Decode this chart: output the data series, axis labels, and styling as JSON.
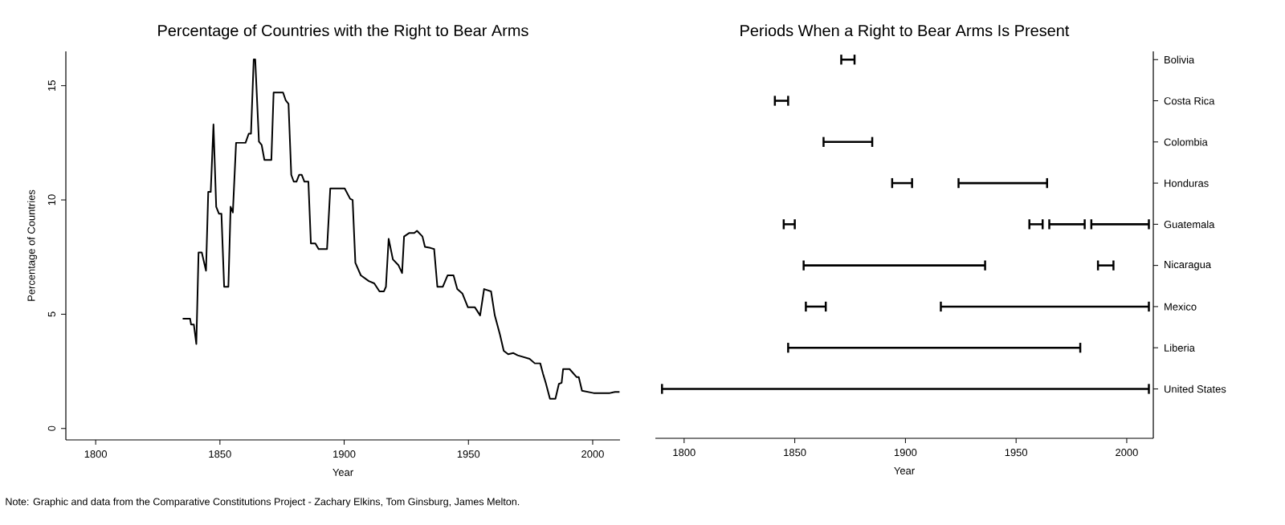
{
  "chart_data": [
    {
      "type": "line",
      "title": "Percentage of Countries with the Right to Bear Arms",
      "xlabel": "Year",
      "ylabel": "Percentage of Countries",
      "x": [
        1835,
        1838,
        1838.4,
        1839.5,
        1840.5,
        1841.4,
        1842.7,
        1844.4,
        1845.3,
        1846.3,
        1847.4,
        1848.5,
        1849.6,
        1850.6,
        1851.7,
        1853.4,
        1854.3,
        1855.2,
        1856.5,
        1860.3,
        1861.6,
        1862.5,
        1863.6,
        1864.2,
        1865.7,
        1866.8,
        1867.9,
        1870.7,
        1871.6,
        1875.4,
        1876.5,
        1877.6,
        1878.7,
        1879.7,
        1880.8,
        1881.9,
        1882.9,
        1884,
        1885.6,
        1886.6,
        1888.4,
        1889.7,
        1893.1,
        1894.4,
        1900.2,
        1902.4,
        1903.4,
        1904.5,
        1906.7,
        1909.9,
        1912.1,
        1914.2,
        1916,
        1916.8,
        1917.9,
        1919.6,
        1921.8,
        1923.3,
        1924.1,
        1926.1,
        1928.2,
        1929.3,
        1931.5,
        1932.5,
        1934.7,
        1936.2,
        1937.5,
        1939.7,
        1941.6,
        1944,
        1945.5,
        1947.6,
        1949.8,
        1952.6,
        1954.7,
        1956.3,
        1959.1,
        1960.6,
        1962.7,
        1964.2,
        1966,
        1968.1,
        1969.8,
        1974.6,
        1976.7,
        1978.9,
        1980,
        1981.1,
        1982.8,
        1985,
        1986.4,
        1987.5,
        1988.1,
        1990.7,
        1993.5,
        1994.4,
        1995.7,
        2000.4,
        2006.9,
        2009,
        2010.8
      ],
      "values": [
        4.8,
        4.8,
        4.55,
        4.55,
        3.7,
        7.7,
        7.7,
        6.9,
        10.35,
        10.35,
        13.3,
        9.7,
        9.4,
        9.4,
        6.2,
        6.2,
        9.7,
        9.45,
        12.5,
        12.5,
        12.9,
        12.9,
        16.15,
        16.15,
        12.55,
        12.4,
        11.75,
        11.75,
        14.7,
        14.7,
        14.35,
        14.2,
        11.1,
        10.8,
        10.8,
        11.1,
        11.1,
        10.8,
        10.8,
        8.1,
        8.1,
        7.85,
        7.85,
        10.5,
        10.5,
        10.05,
        10.0,
        7.25,
        6.7,
        6.45,
        6.35,
        6.0,
        6.0,
        6.2,
        8.3,
        7.4,
        7.15,
        6.8,
        8.4,
        8.55,
        8.55,
        8.65,
        8.4,
        7.95,
        7.9,
        7.85,
        6.2,
        6.2,
        6.7,
        6.7,
        6.1,
        5.9,
        5.3,
        5.3,
        4.95,
        6.1,
        6.0,
        4.95,
        4.1,
        3.4,
        3.25,
        3.3,
        3.2,
        3.05,
        2.85,
        2.85,
        2.4,
        2.0,
        1.3,
        1.3,
        1.95,
        2.0,
        2.6,
        2.6,
        2.25,
        2.25,
        1.65,
        1.55,
        1.55,
        1.6,
        1.6
      ],
      "color": "#000000",
      "xlim": [
        1788,
        2011
      ],
      "ylim": [
        -0.5,
        16.5
      ],
      "xticks": [
        1800,
        1850,
        1900,
        1950,
        2000
      ],
      "yticks": [
        0,
        5,
        10,
        15
      ],
      "annotations": [
        "Note: Graphic and data from the Comparative Constitutions Project - Zachary Elkins, Tom Ginsburg, James Melton."
      ]
    },
    {
      "type": "bar",
      "orientation": "horizontal",
      "title": "Periods When a Right to Bear Arms Is Present",
      "xlabel": "Year",
      "categories": [
        "Bolivia",
        "Costa Rica",
        "Colombia",
        "Honduras",
        "Guatemala",
        "Nicaragua",
        "Mexico",
        "Liberia",
        "United States"
      ],
      "series": [
        {
          "color": "#000000",
          "base": [
            1871,
            1841,
            1863,
            1894,
            1845,
            1854,
            1855,
            1847,
            1790
          ],
          "values": [
            6,
            6,
            22,
            9,
            5,
            82,
            9,
            132,
            220
          ]
        },
        {
          "color": "#000000",
          "base": [
            null,
            null,
            null,
            1924,
            1956,
            1987,
            1916,
            null,
            null
          ],
          "values": [
            null,
            null,
            null,
            40,
            6,
            7,
            94,
            null,
            null
          ]
        },
        {
          "color": "#000000",
          "base": [
            null,
            null,
            null,
            null,
            1965,
            null,
            null,
            null,
            null
          ],
          "values": [
            null,
            null,
            null,
            null,
            16,
            null,
            null,
            null,
            null
          ]
        },
        {
          "color": "#000000",
          "base": [
            null,
            null,
            null,
            null,
            1984,
            null,
            null,
            null,
            null
          ],
          "values": [
            null,
            null,
            null,
            null,
            26,
            null,
            null,
            null,
            null
          ]
        }
      ],
      "xlim": [
        1787,
        2012
      ],
      "xticks": [
        1800,
        1850,
        1900,
        1950,
        2000
      ]
    }
  ]
}
